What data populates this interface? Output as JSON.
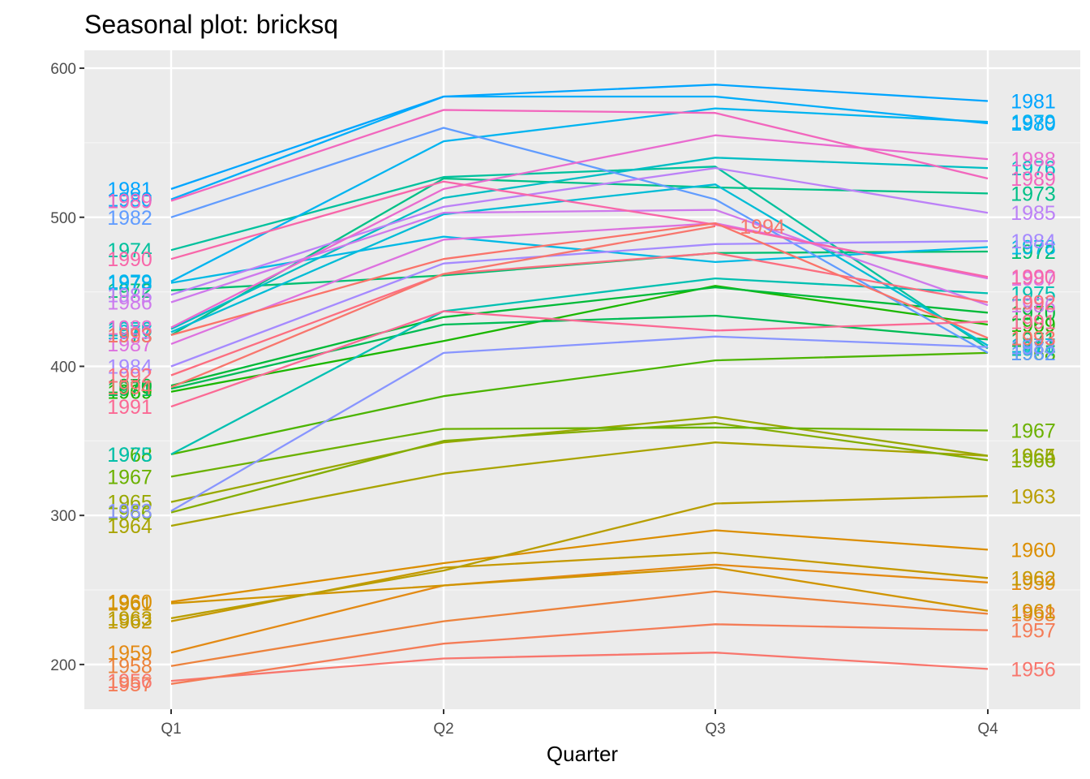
{
  "chart_data": {
    "type": "line",
    "title": "Seasonal plot: bricksq",
    "xlabel": "Quarter",
    "ylabel": "",
    "categories": [
      "Q1",
      "Q2",
      "Q3",
      "Q4"
    ],
    "yticks": [
      200,
      300,
      400,
      500,
      600
    ],
    "ylim": [
      170,
      612
    ],
    "grid": true,
    "legend": "none",
    "series": [
      {
        "name": "1956",
        "color": "#F8766D",
        "values": [
          189,
          204,
          208,
          197
        ]
      },
      {
        "name": "1957",
        "color": "#F47C57",
        "values": [
          187,
          214,
          227,
          223
        ]
      },
      {
        "name": "1958",
        "color": "#EC823C",
        "values": [
          199,
          229,
          249,
          234
        ]
      },
      {
        "name": "1959",
        "color": "#E38A14",
        "values": [
          208,
          253,
          267,
          255
        ]
      },
      {
        "name": "1960",
        "color": "#DB8E00",
        "values": [
          242,
          268,
          290,
          277
        ]
      },
      {
        "name": "1961",
        "color": "#D09400",
        "values": [
          241,
          253,
          265,
          236
        ]
      },
      {
        "name": "1962",
        "color": "#C59900",
        "values": [
          229,
          265,
          275,
          258
        ]
      },
      {
        "name": "1963",
        "color": "#B89E00",
        "values": [
          231,
          263,
          308,
          313
        ]
      },
      {
        "name": "1964",
        "color": "#A9A400",
        "values": [
          293,
          328,
          349,
          340
        ]
      },
      {
        "name": "1965",
        "color": "#98A800",
        "values": [
          309,
          349,
          366,
          340
        ]
      },
      {
        "name": "1966",
        "color": "#84AD00",
        "values": [
          302,
          350,
          362,
          337
        ]
      },
      {
        "name": "1967",
        "color": "#6BB100",
        "values": [
          326,
          358,
          359,
          357
        ]
      },
      {
        "name": "1968",
        "color": "#4BB400",
        "values": [
          341,
          380,
          404,
          409
        ]
      },
      {
        "name": "1969",
        "color": "#1BB700",
        "values": [
          383,
          417,
          454,
          428
        ]
      },
      {
        "name": "1970",
        "color": "#00BA38",
        "values": [
          387,
          433,
          453,
          436
        ]
      },
      {
        "name": "1971",
        "color": "#00BC55",
        "values": [
          385,
          428,
          434,
          418
        ]
      },
      {
        "name": "1972",
        "color": "#00BF70",
        "values": [
          451,
          461,
          476,
          477
        ]
      },
      {
        "name": "1973",
        "color": "#00C087",
        "values": [
          421,
          526,
          520,
          516
        ]
      },
      {
        "name": "1974",
        "color": "#00C19D",
        "values": [
          478,
          527,
          534,
          412
        ]
      },
      {
        "name": "1975",
        "color": "#00C0B1",
        "values": [
          341,
          437,
          459,
          449
        ]
      },
      {
        "name": "1976",
        "color": "#00BEC4",
        "values": [
          425,
          513,
          540,
          533
        ]
      },
      {
        "name": "1977",
        "color": "#00BCD6",
        "values": [
          423,
          502,
          522,
          414
        ]
      },
      {
        "name": "1978",
        "color": "#00B9E5",
        "values": [
          456,
          487,
          470,
          480
        ]
      },
      {
        "name": "1979",
        "color": "#00B4F0",
        "values": [
          457,
          551,
          573,
          564
        ]
      },
      {
        "name": "1980",
        "color": "#00ADFA",
        "values": [
          512,
          581,
          581,
          563
        ]
      },
      {
        "name": "1981",
        "color": "#00A5FF",
        "values": [
          519,
          581,
          589,
          578
        ]
      },
      {
        "name": "1982",
        "color": "#619CFF",
        "values": [
          500,
          560,
          512,
          409
        ]
      },
      {
        "name": "1983",
        "color": "#8895FF",
        "values": [
          303,
          409,
          420,
          413
        ]
      },
      {
        "name": "1984",
        "color": "#A58AFF",
        "values": [
          400,
          469,
          482,
          484
        ]
      },
      {
        "name": "1985",
        "color": "#BC81F7",
        "values": [
          448,
          507,
          533,
          503
        ]
      },
      {
        "name": "1986",
        "color": "#CE79EC",
        "values": [
          443,
          503,
          505,
          441
        ]
      },
      {
        "name": "1987",
        "color": "#DD71DF",
        "values": [
          415,
          485,
          496,
          459
        ]
      },
      {
        "name": "1988",
        "color": "#E96BCF",
        "values": [
          426,
          519,
          555,
          539
        ]
      },
      {
        "name": "1989",
        "color": "#F266BD",
        "values": [
          511,
          572,
          570,
          526
        ]
      },
      {
        "name": "1990",
        "color": "#F866A9",
        "values": [
          472,
          524,
          495,
          460
        ]
      },
      {
        "name": "1991",
        "color": "#FB6994",
        "values": [
          373,
          437,
          424,
          430
        ]
      },
      {
        "name": "1992",
        "color": "#FC6E7F",
        "values": [
          394,
          462,
          476,
          443
        ]
      },
      {
        "name": "1993",
        "color": "#FA7369",
        "values": [
          421,
          472,
          496,
          419
        ]
      },
      {
        "name": "1994",
        "color": "#F8766D",
        "values": [
          386,
          462,
          494,
          null
        ]
      }
    ]
  }
}
